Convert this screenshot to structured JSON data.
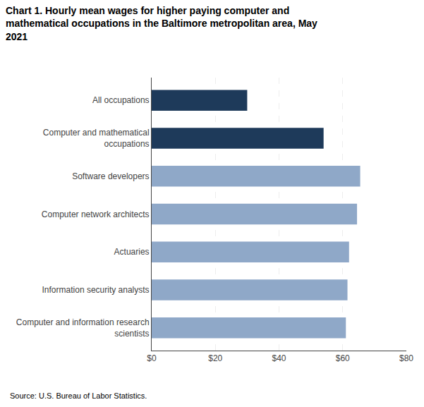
{
  "chart_data": {
    "type": "bar",
    "orientation": "horizontal",
    "title": "Chart 1. Hourly mean wages for higher paying computer and\nmathematical occupations in the Baltimore metropolitan area, May\n2021",
    "categories": [
      "Computer and information research\nscientists",
      "Information security analysts",
      "Actuaries",
      "Computer network architects",
      "Software developers",
      "Computer and mathematical\noccupations",
      "All occupations"
    ],
    "values": [
      61.0,
      61.5,
      62.0,
      64.5,
      65.5,
      54.0,
      30.0
    ],
    "colors": [
      "#8fa8c8",
      "#8fa8c8",
      "#8fa8c8",
      "#8fa8c8",
      "#8fa8c8",
      "#1e3a5a",
      "#1e3a5a"
    ],
    "xlim": [
      0,
      80
    ],
    "xticks": [
      {
        "value": 0,
        "label": "$0"
      },
      {
        "value": 20,
        "label": "$20"
      },
      {
        "value": 40,
        "label": "$40"
      },
      {
        "value": 60,
        "label": "$60"
      },
      {
        "value": 80,
        "label": "$80"
      }
    ],
    "grid": true,
    "annotations": [
      "Source: U.S. Bureau of Labor Statistics."
    ]
  }
}
